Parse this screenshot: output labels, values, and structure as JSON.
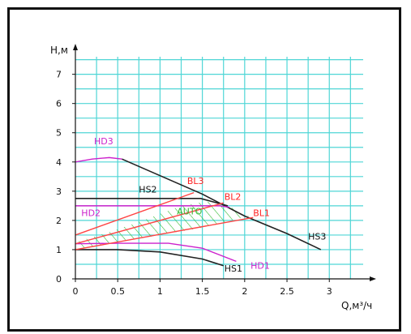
{
  "chart_data": {
    "type": "line",
    "xlabel": "Q,м³/ч",
    "ylabel": "Н,м",
    "xlim": [
      0,
      3.4
    ],
    "ylim": [
      0,
      7.6
    ],
    "x_ticks": [
      0,
      0.5,
      1,
      1.5,
      2,
      2.5,
      3
    ],
    "x_tick_labels": [
      "0",
      "0.5",
      "1",
      "1.5",
      "2",
      "2.5",
      "3"
    ],
    "y_ticks": [
      0,
      1,
      2,
      3,
      4,
      5,
      6,
      7
    ],
    "y_tick_labels": [
      "0",
      "1",
      "2",
      "3",
      "4",
      "5",
      "6",
      "7"
    ],
    "grid": true,
    "colors": {
      "grid": "#4fd6d6",
      "axis": "#111111",
      "hs": "#222222",
      "hd": "#cc22cc",
      "bl": "#ff4444",
      "auto": "#33bb33",
      "label_black": "#111111",
      "label_magenta": "#cc22cc",
      "label_red": "#ff2222",
      "label_green": "#33bb33"
    },
    "series": [
      {
        "name": "HS1",
        "kind": "hs",
        "points": [
          [
            0,
            1.0
          ],
          [
            0.5,
            1.0
          ],
          [
            1.0,
            0.92
          ],
          [
            1.5,
            0.68
          ],
          [
            1.75,
            0.45
          ]
        ]
      },
      {
        "name": "HS2",
        "kind": "hs",
        "points": [
          [
            0,
            2.75
          ],
          [
            1.48,
            2.75
          ],
          [
            1.8,
            2.5
          ]
        ]
      },
      {
        "name": "HS3",
        "kind": "hs",
        "points": [
          [
            0.55,
            4.1
          ],
          [
            1.5,
            2.9
          ],
          [
            2.0,
            2.15
          ],
          [
            2.5,
            1.55
          ],
          [
            2.9,
            1.0
          ]
        ]
      },
      {
        "name": "HD1",
        "kind": "hd",
        "points": [
          [
            0,
            1.2
          ],
          [
            0.5,
            1.22
          ],
          [
            1.1,
            1.22
          ],
          [
            1.5,
            1.05
          ],
          [
            1.9,
            0.6
          ]
        ]
      },
      {
        "name": "HD2",
        "kind": "hd",
        "points": [
          [
            0,
            2.5
          ],
          [
            1.7,
            2.5
          ],
          [
            1.82,
            2.45
          ]
        ]
      },
      {
        "name": "HD3",
        "kind": "hd",
        "points": [
          [
            0,
            4.0
          ],
          [
            0.2,
            4.1
          ],
          [
            0.4,
            4.15
          ],
          [
            0.55,
            4.1
          ]
        ]
      },
      {
        "name": "BL1",
        "kind": "bl",
        "points": [
          [
            0,
            1.0
          ],
          [
            2.1,
            2.1
          ]
        ]
      },
      {
        "name": "BL2",
        "kind": "bl",
        "points": [
          [
            0,
            1.2
          ],
          [
            1.75,
            2.6
          ]
        ]
      },
      {
        "name": "BL3",
        "kind": "bl",
        "points": [
          [
            0,
            1.5
          ],
          [
            1.4,
            2.95
          ]
        ]
      }
    ],
    "auto_region": [
      [
        0,
        1.25
      ],
      [
        0.4,
        1.6
      ],
      [
        0.8,
        2.0
      ],
      [
        1.25,
        2.5
      ],
      [
        1.55,
        2.65
      ],
      [
        1.8,
        2.5
      ],
      [
        2.05,
        2.15
      ],
      [
        1.5,
        1.75
      ],
      [
        1.0,
        1.5
      ],
      [
        0.5,
        1.25
      ],
      [
        0,
        1.0
      ]
    ],
    "annotations": [
      {
        "text": "HD3",
        "x": 0.22,
        "y": 4.6,
        "color": "label_magenta"
      },
      {
        "text": "HS2",
        "x": 0.75,
        "y": 2.95,
        "color": "label_black"
      },
      {
        "text": "BL3",
        "x": 1.32,
        "y": 3.25,
        "color": "label_red"
      },
      {
        "text": "BL2",
        "x": 1.76,
        "y": 2.7,
        "color": "label_red"
      },
      {
        "text": "BL1",
        "x": 2.1,
        "y": 2.15,
        "color": "label_red"
      },
      {
        "text": "HD2",
        "x": 0.07,
        "y": 2.15,
        "color": "label_magenta"
      },
      {
        "text": "AUTO",
        "x": 1.2,
        "y": 2.2,
        "color": "label_green"
      },
      {
        "text": "HS3",
        "x": 2.75,
        "y": 1.35,
        "color": "label_black"
      },
      {
        "text": "HS1",
        "x": 1.76,
        "y": 0.25,
        "color": "label_black"
      },
      {
        "text": "HD1",
        "x": 2.07,
        "y": 0.35,
        "color": "label_magenta"
      }
    ]
  }
}
